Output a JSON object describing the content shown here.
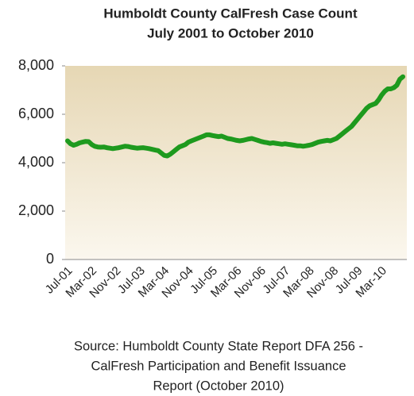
{
  "chart_data": {
    "type": "line",
    "title": "Humboldt County CalFresh Case Count",
    "subtitle": "July 2001 to October 2010",
    "source": [
      "Source: Humboldt County State Report DFA 256 -",
      "CalFresh Participation and Benefit Issuance",
      "Report (October 2010)"
    ],
    "categories": [
      "Jul-01",
      null,
      null,
      null,
      null,
      null,
      null,
      null,
      "Mar-02",
      null,
      null,
      null,
      null,
      null,
      null,
      null,
      "Nov-02",
      null,
      null,
      null,
      null,
      null,
      null,
      null,
      "Jul-03",
      null,
      null,
      null,
      null,
      null,
      null,
      null,
      "Mar-04",
      null,
      null,
      null,
      null,
      null,
      null,
      null,
      "Nov-04",
      null,
      null,
      null,
      null,
      null,
      null,
      null,
      "Jul-05",
      null,
      null,
      null,
      null,
      null,
      null,
      null,
      "Mar-06",
      null,
      null,
      null,
      null,
      null,
      null,
      null,
      "Nov-06",
      null,
      null,
      null,
      null,
      null,
      null,
      null,
      "Jul-07",
      null,
      null,
      null,
      null,
      null,
      null,
      null,
      "Mar-08",
      null,
      null,
      null,
      null,
      null,
      null,
      null,
      "Nov-08",
      null,
      null,
      null,
      null,
      null,
      null,
      null,
      "Jul-09",
      null,
      null,
      null,
      null,
      null,
      null,
      null,
      "Mar-10",
      null,
      null,
      null,
      null,
      null,
      null,
      null
    ],
    "series": [
      {
        "color": "#1e9a1e",
        "values": [
          4900,
          4780,
          4720,
          4760,
          4820,
          4850,
          4880,
          4870,
          4750,
          4680,
          4650,
          4640,
          4650,
          4620,
          4600,
          4580,
          4600,
          4620,
          4650,
          4680,
          4670,
          4640,
          4620,
          4600,
          4610,
          4620,
          4600,
          4580,
          4550,
          4520,
          4500,
          4400,
          4300,
          4280,
          4350,
          4450,
          4550,
          4650,
          4700,
          4750,
          4850,
          4900,
          4950,
          5000,
          5050,
          5100,
          5150,
          5150,
          5120,
          5100,
          5080,
          5100,
          5050,
          5000,
          4980,
          4950,
          4920,
          4900,
          4920,
          4950,
          4980,
          5000,
          4960,
          4920,
          4880,
          4850,
          4830,
          4800,
          4820,
          4800,
          4780,
          4760,
          4780,
          4760,
          4740,
          4720,
          4700,
          4700,
          4680,
          4700,
          4720,
          4750,
          4800,
          4850,
          4880,
          4900,
          4920,
          4900,
          4950,
          5000,
          5100,
          5200,
          5300,
          5400,
          5500,
          5650,
          5800,
          5950,
          6100,
          6250,
          6350,
          6400,
          6450,
          6600,
          6800,
          6950,
          7050,
          7050,
          7100,
          7200,
          7450,
          7550
        ]
      }
    ],
    "ylim": [
      0,
      8000
    ],
    "yticks": [
      0,
      {
        "value": 2000,
        "label": "2,000"
      },
      {
        "value": 4000,
        "label": "4,000"
      },
      {
        "value": 6000,
        "label": "6,000"
      },
      {
        "value": 8000,
        "label": "8,000"
      }
    ]
  }
}
